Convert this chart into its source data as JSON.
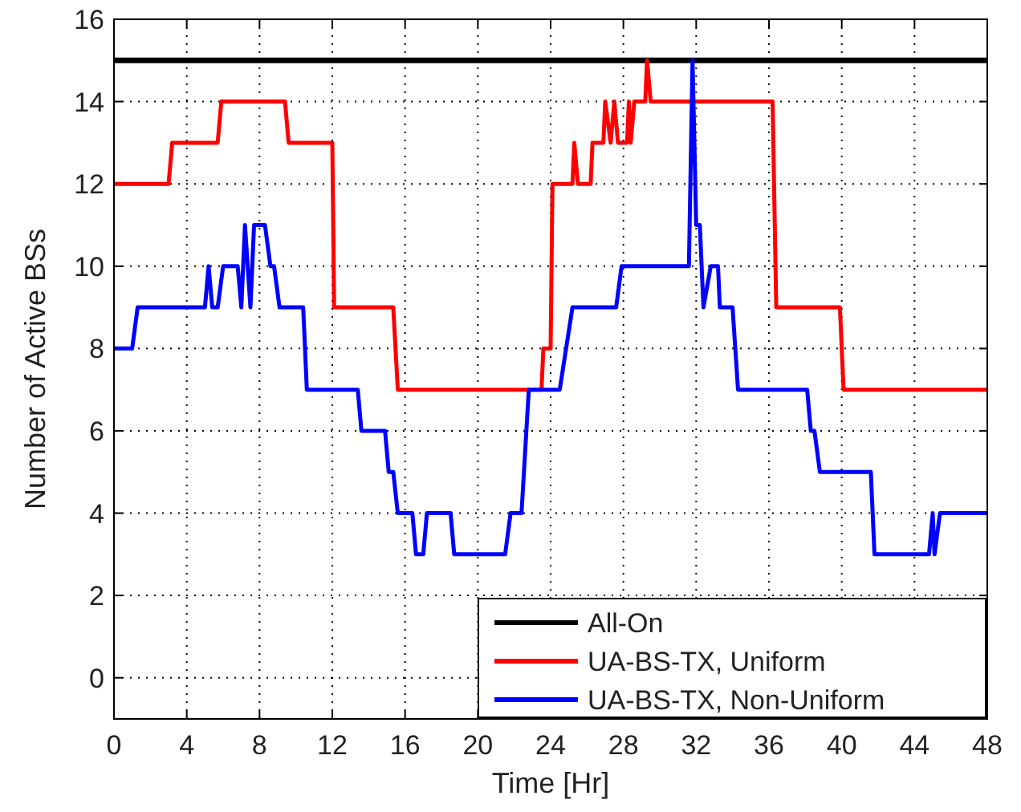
{
  "chart_data": {
    "type": "line",
    "xlabel": "Time [Hr]",
    "ylabel": "Number of Active BSs",
    "xlim": [
      0,
      48
    ],
    "ylim": [
      -1,
      16
    ],
    "xticks": [
      0,
      4,
      8,
      12,
      16,
      20,
      24,
      28,
      32,
      36,
      40,
      44,
      48
    ],
    "yticks": [
      0,
      2,
      4,
      6,
      8,
      10,
      12,
      14,
      16
    ],
    "grid": true,
    "legend": "bottom right",
    "series": [
      {
        "name": "All-On",
        "color": "#000000",
        "x": [
          0,
          48
        ],
        "values": [
          15,
          15
        ]
      },
      {
        "name": "UA-BS-TX, Uniform",
        "color": "#ff0000",
        "x": [
          0,
          3.0,
          3.2,
          5.7,
          5.9,
          9.4,
          9.6,
          12.0,
          12.1,
          15.35,
          15.6,
          23.5,
          23.6,
          24.0,
          24.1,
          25.2,
          25.3,
          25.5,
          26.2,
          26.3,
          26.9,
          27.0,
          27.3,
          27.5,
          27.7,
          28.2,
          28.3,
          28.4,
          28.6,
          29.2,
          29.3,
          29.5,
          36.2,
          36.4,
          39.9,
          40.1,
          48
        ],
        "values": [
          12,
          12,
          13,
          13,
          14,
          14,
          13,
          13,
          9,
          9,
          7,
          7,
          8,
          8,
          12,
          12,
          13,
          12,
          12,
          13,
          13,
          14,
          13,
          14,
          13,
          13,
          14,
          13,
          14,
          14,
          15,
          14,
          14,
          9,
          9,
          7,
          7
        ]
      },
      {
        "name": "UA-BS-TX, Non-Uniform",
        "color": "#0000ff",
        "x": [
          0,
          1.0,
          1.3,
          5.0,
          5.2,
          5.4,
          5.7,
          6.0,
          6.8,
          7.0,
          7.2,
          7.5,
          7.7,
          8.3,
          8.6,
          8.8,
          9.1,
          10.4,
          10.6,
          13.4,
          13.6,
          14.9,
          15.1,
          15.35,
          15.6,
          16.4,
          16.6,
          17.0,
          17.2,
          18.5,
          18.7,
          21.5,
          21.8,
          22.4,
          22.8,
          24.5,
          25.2,
          27.6,
          27.9,
          31.6,
          31.8,
          32.0,
          32.2,
          32.4,
          32.8,
          33.2,
          33.3,
          34.0,
          34.3,
          38.1,
          38.3,
          38.5,
          38.8,
          41.6,
          41.8,
          44.8,
          45.0,
          45.1,
          45.4,
          48
        ],
        "values": [
          8,
          8,
          9,
          9,
          10,
          9,
          9,
          10,
          10,
          9,
          11,
          9,
          11,
          11,
          10,
          10,
          9,
          9,
          7,
          7,
          6,
          6,
          5,
          5,
          4,
          4,
          3,
          3,
          4,
          4,
          3,
          3,
          4,
          4,
          7,
          7,
          9,
          9,
          10,
          10,
          15,
          11,
          11,
          9,
          10,
          10,
          9,
          9,
          7,
          7,
          6,
          6,
          5,
          5,
          3,
          3,
          4,
          3,
          4,
          4
        ]
      }
    ]
  }
}
